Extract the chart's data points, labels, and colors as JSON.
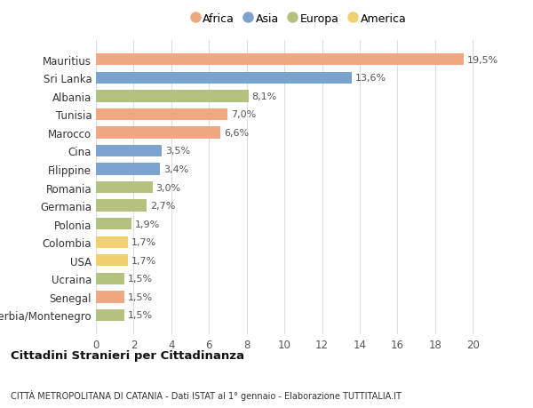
{
  "categories": [
    "Serbia/Montenegro",
    "Senegal",
    "Ucraina",
    "USA",
    "Colombia",
    "Polonia",
    "Germania",
    "Romania",
    "Filippine",
    "Cina",
    "Marocco",
    "Tunisia",
    "Albania",
    "Sri Lanka",
    "Mauritius"
  ],
  "values": [
    1.5,
    1.5,
    1.5,
    1.7,
    1.7,
    1.9,
    2.7,
    3.0,
    3.4,
    3.5,
    6.6,
    7.0,
    8.1,
    13.6,
    19.5
  ],
  "labels": [
    "1,5%",
    "1,5%",
    "1,5%",
    "1,7%",
    "1,7%",
    "1,9%",
    "2,7%",
    "3,0%",
    "3,4%",
    "3,5%",
    "6,6%",
    "7,0%",
    "8,1%",
    "13,6%",
    "19,5%"
  ],
  "colors": [
    "#b3c27e",
    "#f0a882",
    "#b3c27e",
    "#f0d070",
    "#f0d070",
    "#b3c27e",
    "#b3c27e",
    "#b3c27e",
    "#7ba3d0",
    "#7ba3d0",
    "#f0a882",
    "#f0a882",
    "#b3c27e",
    "#7ba3d0",
    "#f0a882"
  ],
  "legend": [
    {
      "label": "Africa",
      "color": "#f0a882"
    },
    {
      "label": "Asia",
      "color": "#7ba3d0"
    },
    {
      "label": "Europa",
      "color": "#b3c27e"
    },
    {
      "label": "America",
      "color": "#f0d070"
    }
  ],
  "xlim": [
    0,
    21.5
  ],
  "xticks": [
    0,
    2,
    4,
    6,
    8,
    10,
    12,
    14,
    16,
    18,
    20
  ],
  "title": "Cittadini Stranieri per Cittadinanza",
  "subtitle": "CITTÀ METROPOLITANA DI CATANIA - Dati ISTAT al 1° gennaio - Elaborazione TUTTITALIA.IT",
  "bg_color": "#ffffff",
  "grid_color": "#dddddd",
  "label_fontsize": 8.0,
  "bar_height": 0.65,
  "tick_fontsize": 8.5,
  "ylabel_fontsize": 8.5
}
